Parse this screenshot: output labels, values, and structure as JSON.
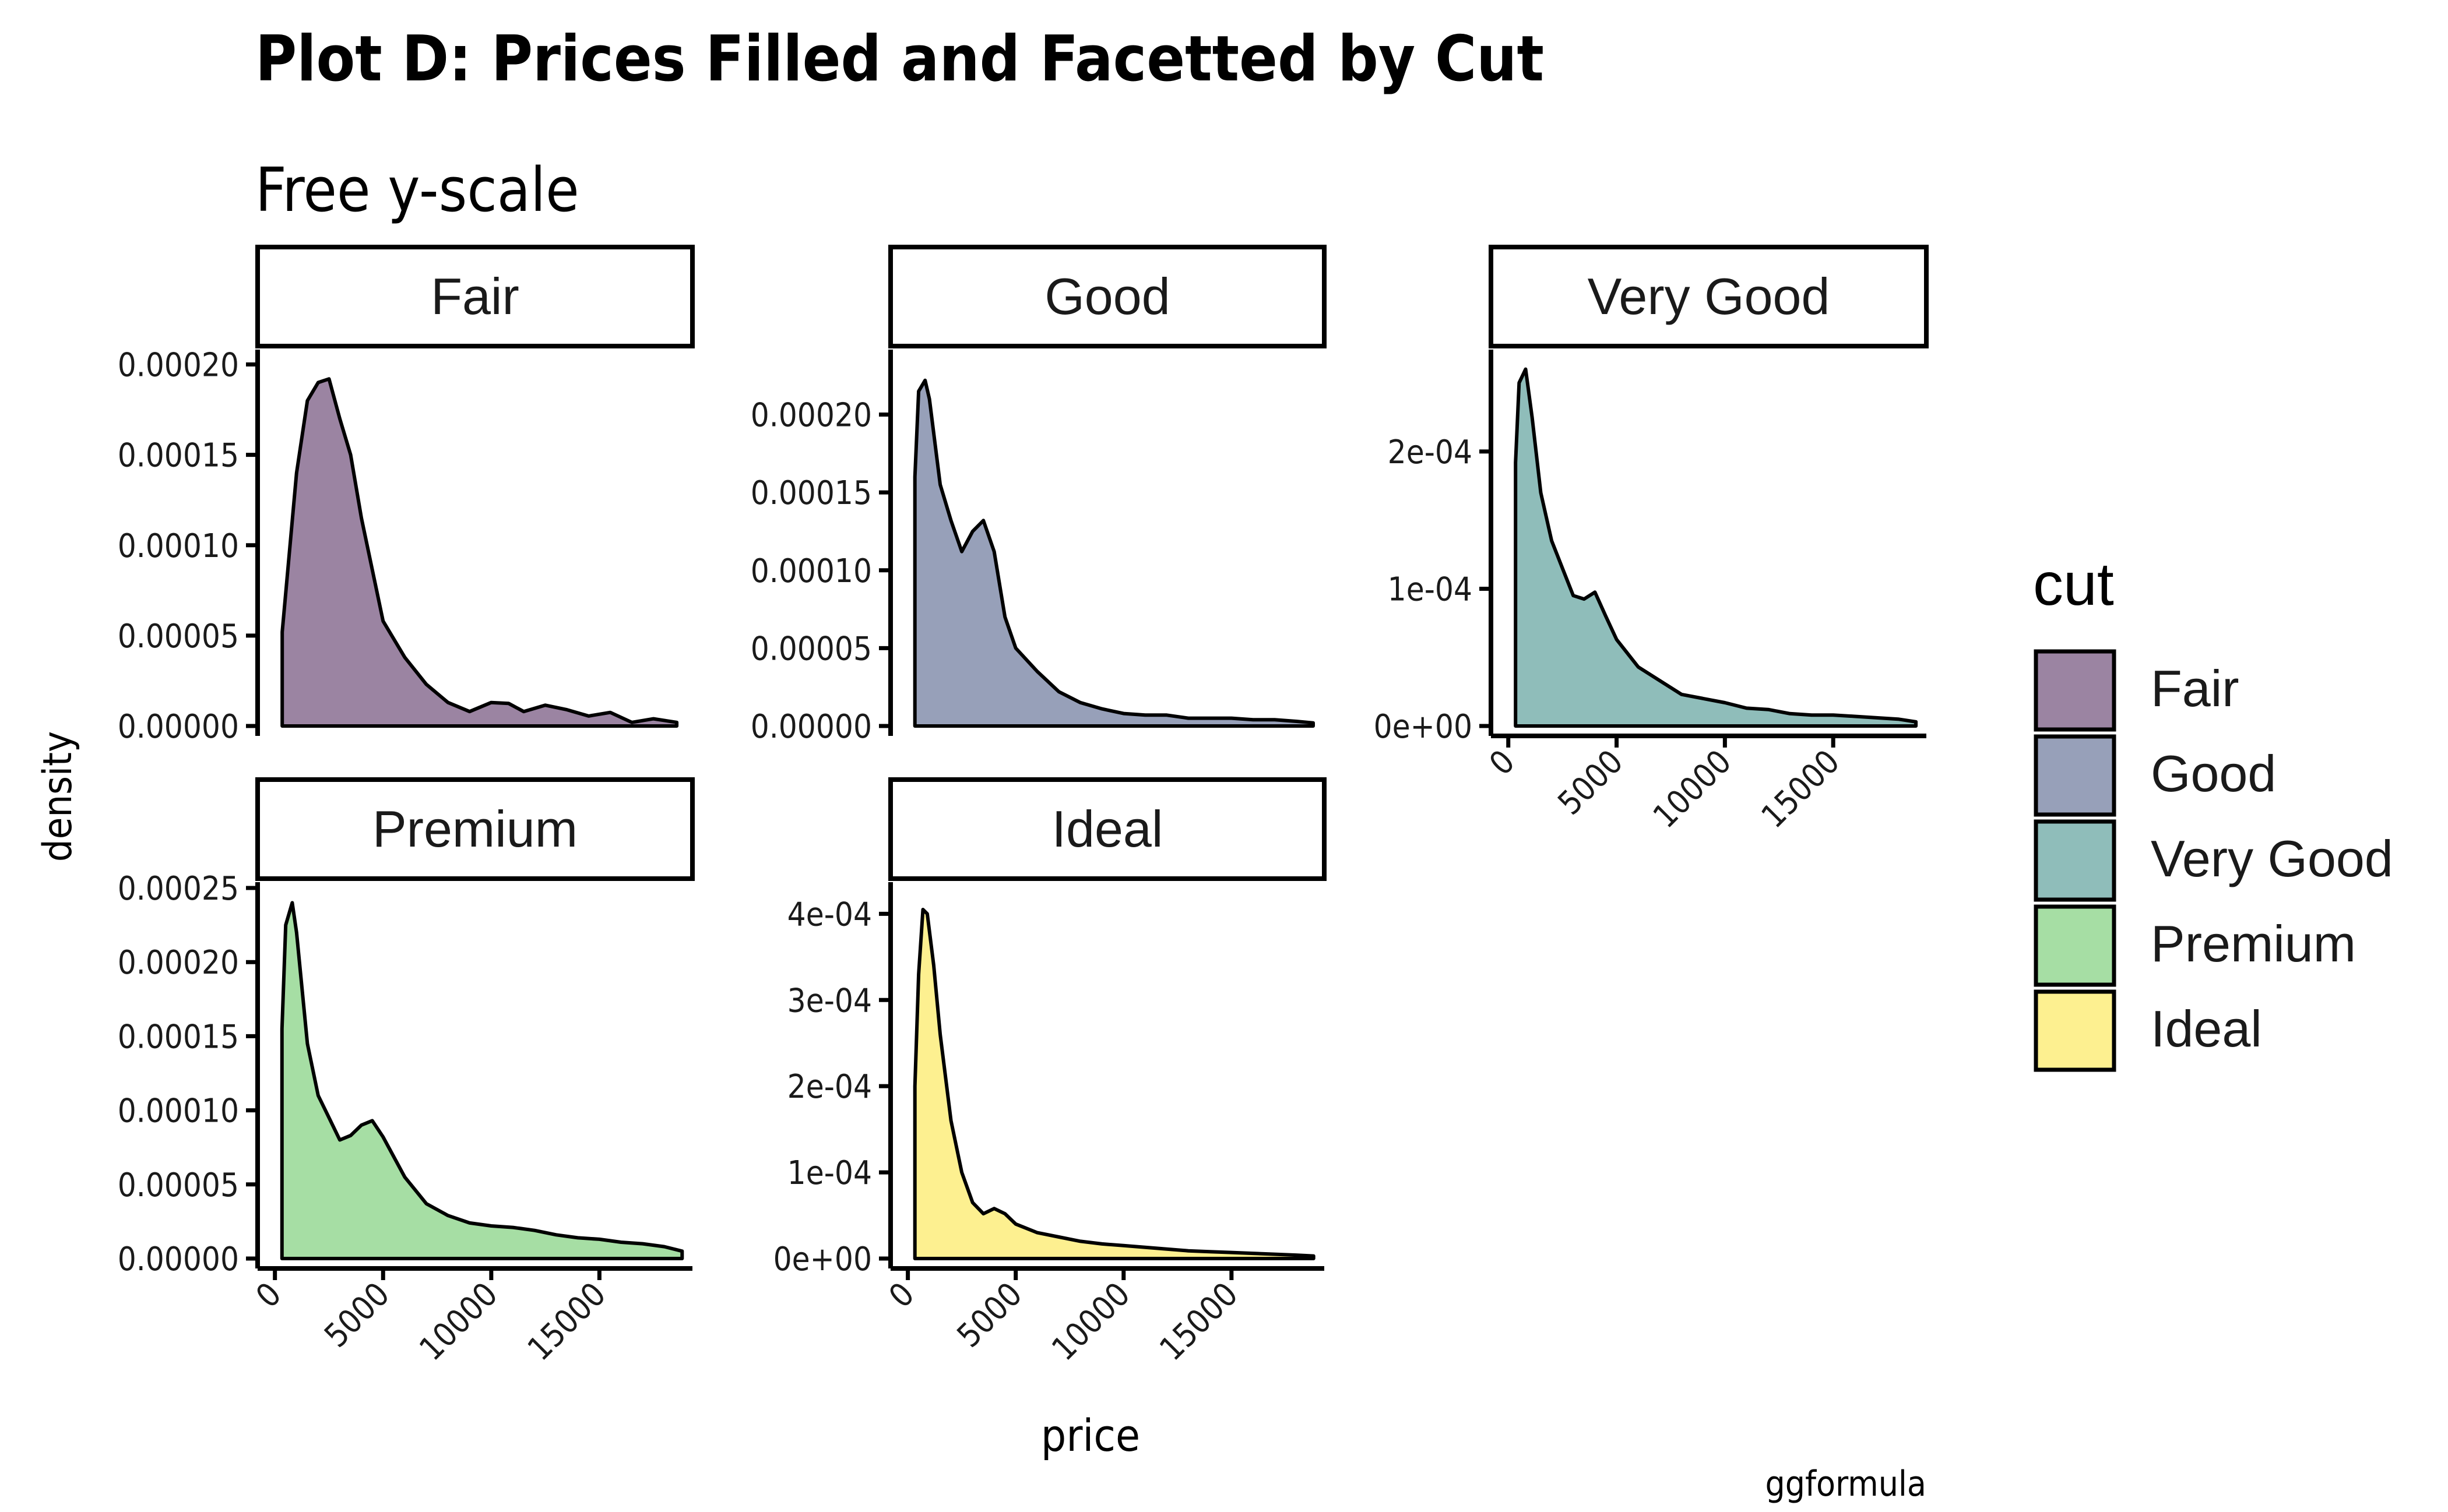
{
  "chart_data": {
    "type": "area",
    "title": "Plot D: Prices Filled and Facetted by Cut",
    "subtitle": "Free y-scale",
    "xlabel": "price",
    "ylabel": "density",
    "caption": "ggformula",
    "xlim": [
      -800,
      19300
    ],
    "x_ticks": [
      0,
      5000,
      10000,
      15000
    ],
    "x_tick_labels": [
      "0",
      "5000",
      "10000",
      "15000"
    ],
    "legend": {
      "title": "cut",
      "placement": "right"
    },
    "grid": false,
    "panels": [
      {
        "name": "Fair",
        "color": "#9b84a2",
        "ylim": [
          0,
          0.000205
        ],
        "y_ticks": [
          0,
          5e-05,
          0.0001,
          0.00015,
          0.0002
        ],
        "y_tick_labels": [
          "0.00000",
          "0.00005",
          "0.00010",
          "0.00015",
          "0.00020"
        ],
        "show_x_axis": false,
        "x": [
          337,
          1000,
          1500,
          2000,
          2500,
          3000,
          3500,
          4000,
          5000,
          6000,
          7000,
          8000,
          9000,
          10000,
          10800,
          11500,
          12500,
          13500,
          14500,
          15500,
          16500,
          17500,
          18574
        ],
        "y": [
          5.2e-05,
          0.00014,
          0.00018,
          0.00019,
          0.000192,
          0.00017,
          0.00015,
          0.000115,
          5.8e-05,
          3.8e-05,
          2.3e-05,
          1.3e-05,
          8e-06,
          1.3e-05,
          1.25e-05,
          8e-06,
          1.15e-05,
          9e-06,
          5.5e-06,
          7.5e-06,
          2e-06,
          4e-06,
          2e-06
        ]
      },
      {
        "name": "Good",
        "color": "#97a0b9",
        "ylim": [
          0,
          0.000238
        ],
        "y_ticks": [
          0,
          5e-05,
          0.0001,
          0.00015,
          0.0002
        ],
        "y_tick_labels": [
          "0.00000",
          "0.00005",
          "0.00010",
          "0.00015",
          "0.00020"
        ],
        "show_x_axis": false,
        "x": [
          327,
          500,
          800,
          1000,
          1500,
          2000,
          2500,
          3000,
          3500,
          4000,
          4500,
          5000,
          6000,
          7000,
          8000,
          9000,
          10000,
          11000,
          12000,
          13000,
          14000,
          15000,
          16000,
          17000,
          18000,
          18788
        ],
        "y": [
          0.00016,
          0.000215,
          0.000222,
          0.00021,
          0.000155,
          0.000132,
          0.000112,
          0.000125,
          0.000132,
          0.000112,
          7e-05,
          5e-05,
          3.5e-05,
          2.2e-05,
          1.5e-05,
          1.1e-05,
          8e-06,
          7e-06,
          7e-06,
          5e-06,
          5e-06,
          5e-06,
          4e-06,
          4e-06,
          3e-06,
          2e-06
        ]
      },
      {
        "name": "Very Good",
        "color": "#8fbdba",
        "ylim": [
          0,
          0.00027
        ],
        "y_ticks": [
          0,
          0.0001,
          0.0002
        ],
        "y_tick_labels": [
          "0e+00",
          "1e-04",
          "2e-04"
        ],
        "show_x_axis": true,
        "x": [
          336,
          500,
          800,
          1100,
          1500,
          2000,
          2500,
          3000,
          3500,
          4000,
          4500,
          5000,
          6000,
          7000,
          8000,
          9000,
          10000,
          11000,
          12000,
          13000,
          14000,
          15000,
          16000,
          17000,
          18000,
          18818
        ],
        "y": [
          0.000192,
          0.00025,
          0.00026,
          0.000225,
          0.00017,
          0.000135,
          0.000115,
          9.5e-05,
          9.25e-05,
          9.75e-05,
          8e-05,
          6.3e-05,
          4.3e-05,
          3.3e-05,
          2.3e-05,
          2e-05,
          1.7e-05,
          1.3e-05,
          1.2e-05,
          9e-06,
          8e-06,
          8e-06,
          7e-06,
          6e-06,
          5e-06,
          3e-06
        ]
      },
      {
        "name": "Premium",
        "color": "#a6dea4",
        "ylim": [
          0,
          0.00025
        ],
        "y_ticks": [
          0,
          5e-05,
          0.0001,
          0.00015,
          0.0002,
          0.00025
        ],
        "y_tick_labels": [
          "0.00000",
          "0.00005",
          "0.00010",
          "0.00015",
          "0.00020",
          "0.00025"
        ],
        "show_x_axis": true,
        "x": [
          326,
          500,
          800,
          1000,
          1500,
          2000,
          2500,
          3000,
          3500,
          4000,
          4500,
          5000,
          6000,
          7000,
          8000,
          9000,
          10000,
          11000,
          12000,
          13000,
          14000,
          15000,
          16000,
          17000,
          18000,
          18823
        ],
        "y": [
          0.000155,
          0.000225,
          0.00024,
          0.00022,
          0.000145,
          0.00011,
          9.5e-05,
          8e-05,
          8.3e-05,
          9e-05,
          9.3e-05,
          8.2e-05,
          5.5e-05,
          3.7e-05,
          2.9e-05,
          2.4e-05,
          2.2e-05,
          2.1e-05,
          1.9e-05,
          1.6e-05,
          1.4e-05,
          1.3e-05,
          1.1e-05,
          1e-05,
          8e-06,
          5e-06
        ]
      },
      {
        "name": "Ideal",
        "color": "#fdf090",
        "ylim": [
          0,
          0.00043
        ],
        "y_ticks": [
          0,
          0.0001,
          0.0002,
          0.0003,
          0.0004
        ],
        "y_tick_labels": [
          "0e+00",
          "1e-04",
          "2e-04",
          "3e-04",
          "4e-04"
        ],
        "show_x_axis": true,
        "x": [
          326,
          500,
          700,
          900,
          1200,
          1500,
          2000,
          2500,
          3000,
          3500,
          4000,
          4500,
          5000,
          6000,
          7000,
          8000,
          9000,
          10000,
          11000,
          12000,
          13000,
          14000,
          15000,
          16000,
          17000,
          18000,
          18806
        ],
        "y": [
          0.0002,
          0.00033,
          0.000405,
          0.0004,
          0.00034,
          0.00026,
          0.00016,
          0.0001,
          6.5e-05,
          5.2e-05,
          5.8e-05,
          5.2e-05,
          4e-05,
          3e-05,
          2.5e-05,
          2e-05,
          1.7e-05,
          1.5e-05,
          1.3e-05,
          1.1e-05,
          9e-06,
          8e-06,
          7e-06,
          6e-06,
          5e-06,
          4e-06,
          3e-06
        ]
      }
    ]
  }
}
